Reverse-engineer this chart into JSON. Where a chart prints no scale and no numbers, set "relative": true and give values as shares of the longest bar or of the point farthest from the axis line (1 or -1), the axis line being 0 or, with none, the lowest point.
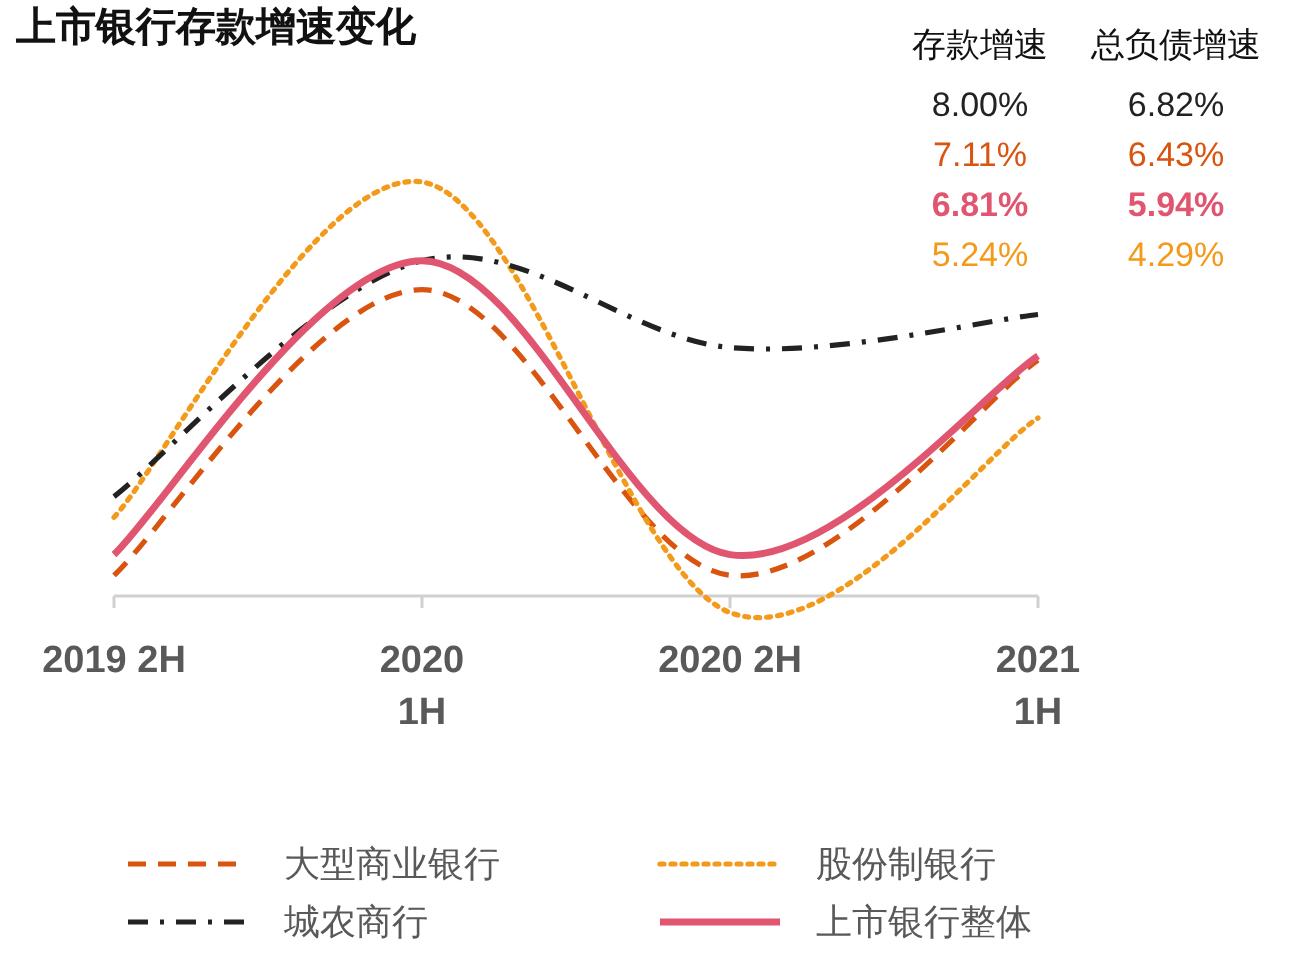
{
  "chart_data": {
    "type": "line",
    "title": "上市银行存款增速变化",
    "relative": true,
    "categories": [
      "2019 2H",
      "2020\n1H",
      "2020 2H",
      "2021\n1H"
    ],
    "series": [
      {
        "name": "大型商业银行",
        "color": "#d9540f",
        "line_style": "dashed",
        "values": [
          0.05,
          0.74,
          0.05,
          0.57
        ]
      },
      {
        "name": "股份制银行",
        "color": "#f39a1a",
        "line_style": "dotted",
        "values": [
          0.19,
          1,
          -0.04,
          0.43
        ]
      },
      {
        "name": "城农商行",
        "color": "#222222",
        "line_style": "dashdot",
        "values": [
          0.24,
          0.81,
          0.6,
          0.68
        ]
      },
      {
        "name": "上市银行整体",
        "color": "#e0556f",
        "line_style": "solid",
        "values": [
          0.1,
          0.81,
          0.1,
          0.58
        ]
      }
    ],
    "annotations": [
      "存款增速",
      "总负债增速",
      "8.00%",
      "6.82%",
      "7.11%",
      "6.43%",
      "6.81%",
      "5.94%",
      "5.24%",
      "4.29%"
    ],
    "legend": "bottom",
    "marker": "none"
  }
}
